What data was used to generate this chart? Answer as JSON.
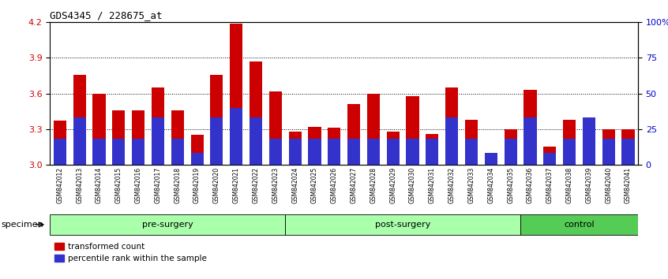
{
  "title": "GDS4345 / 228675_at",
  "samples": [
    "GSM842012",
    "GSM842013",
    "GSM842014",
    "GSM842015",
    "GSM842016",
    "GSM842017",
    "GSM842018",
    "GSM842019",
    "GSM842020",
    "GSM842021",
    "GSM842022",
    "GSM842023",
    "GSM842024",
    "GSM842025",
    "GSM842026",
    "GSM842027",
    "GSM842028",
    "GSM842029",
    "GSM842030",
    "GSM842031",
    "GSM842032",
    "GSM842033",
    "GSM842034",
    "GSM842035",
    "GSM842036",
    "GSM842037",
    "GSM842038",
    "GSM842039",
    "GSM842040",
    "GSM842041"
  ],
  "red_values": [
    3.37,
    3.76,
    3.6,
    3.46,
    3.46,
    3.65,
    3.46,
    3.25,
    3.76,
    4.19,
    3.87,
    3.62,
    3.28,
    3.32,
    3.31,
    3.51,
    3.6,
    3.28,
    3.58,
    3.26,
    3.65,
    3.38,
    3.1,
    3.3,
    3.63,
    3.15,
    3.38,
    3.37,
    3.3,
    3.3
  ],
  "blue_percentiles": [
    18,
    33,
    18,
    18,
    18,
    33,
    18,
    8,
    33,
    40,
    33,
    18,
    18,
    18,
    18,
    18,
    18,
    18,
    18,
    18,
    33,
    18,
    8,
    18,
    33,
    8,
    18,
    33,
    18,
    18
  ],
  "groups": [
    {
      "label": "pre-surgery",
      "start": 0,
      "end": 12
    },
    {
      "label": "post-surgery",
      "start": 12,
      "end": 24
    },
    {
      "label": "control",
      "start": 24,
      "end": 30
    }
  ],
  "ymin": 3.0,
  "ymax": 4.2,
  "yticks_left": [
    3.0,
    3.3,
    3.6,
    3.9,
    4.2
  ],
  "yticks_right_pct": [
    0,
    25,
    50,
    75,
    100
  ],
  "yticks_right_labels": [
    "0",
    "25",
    "50",
    "75",
    "100%"
  ],
  "bar_color": "#CC0000",
  "blue_color": "#3333CC",
  "legend1": "transformed count",
  "legend2": "percentile rank within the sample",
  "specimen_label": "specimen",
  "group_color_light": "#AAFFAA",
  "group_color_dark": "#55CC55",
  "tick_label_bg": "#CCCCCC"
}
